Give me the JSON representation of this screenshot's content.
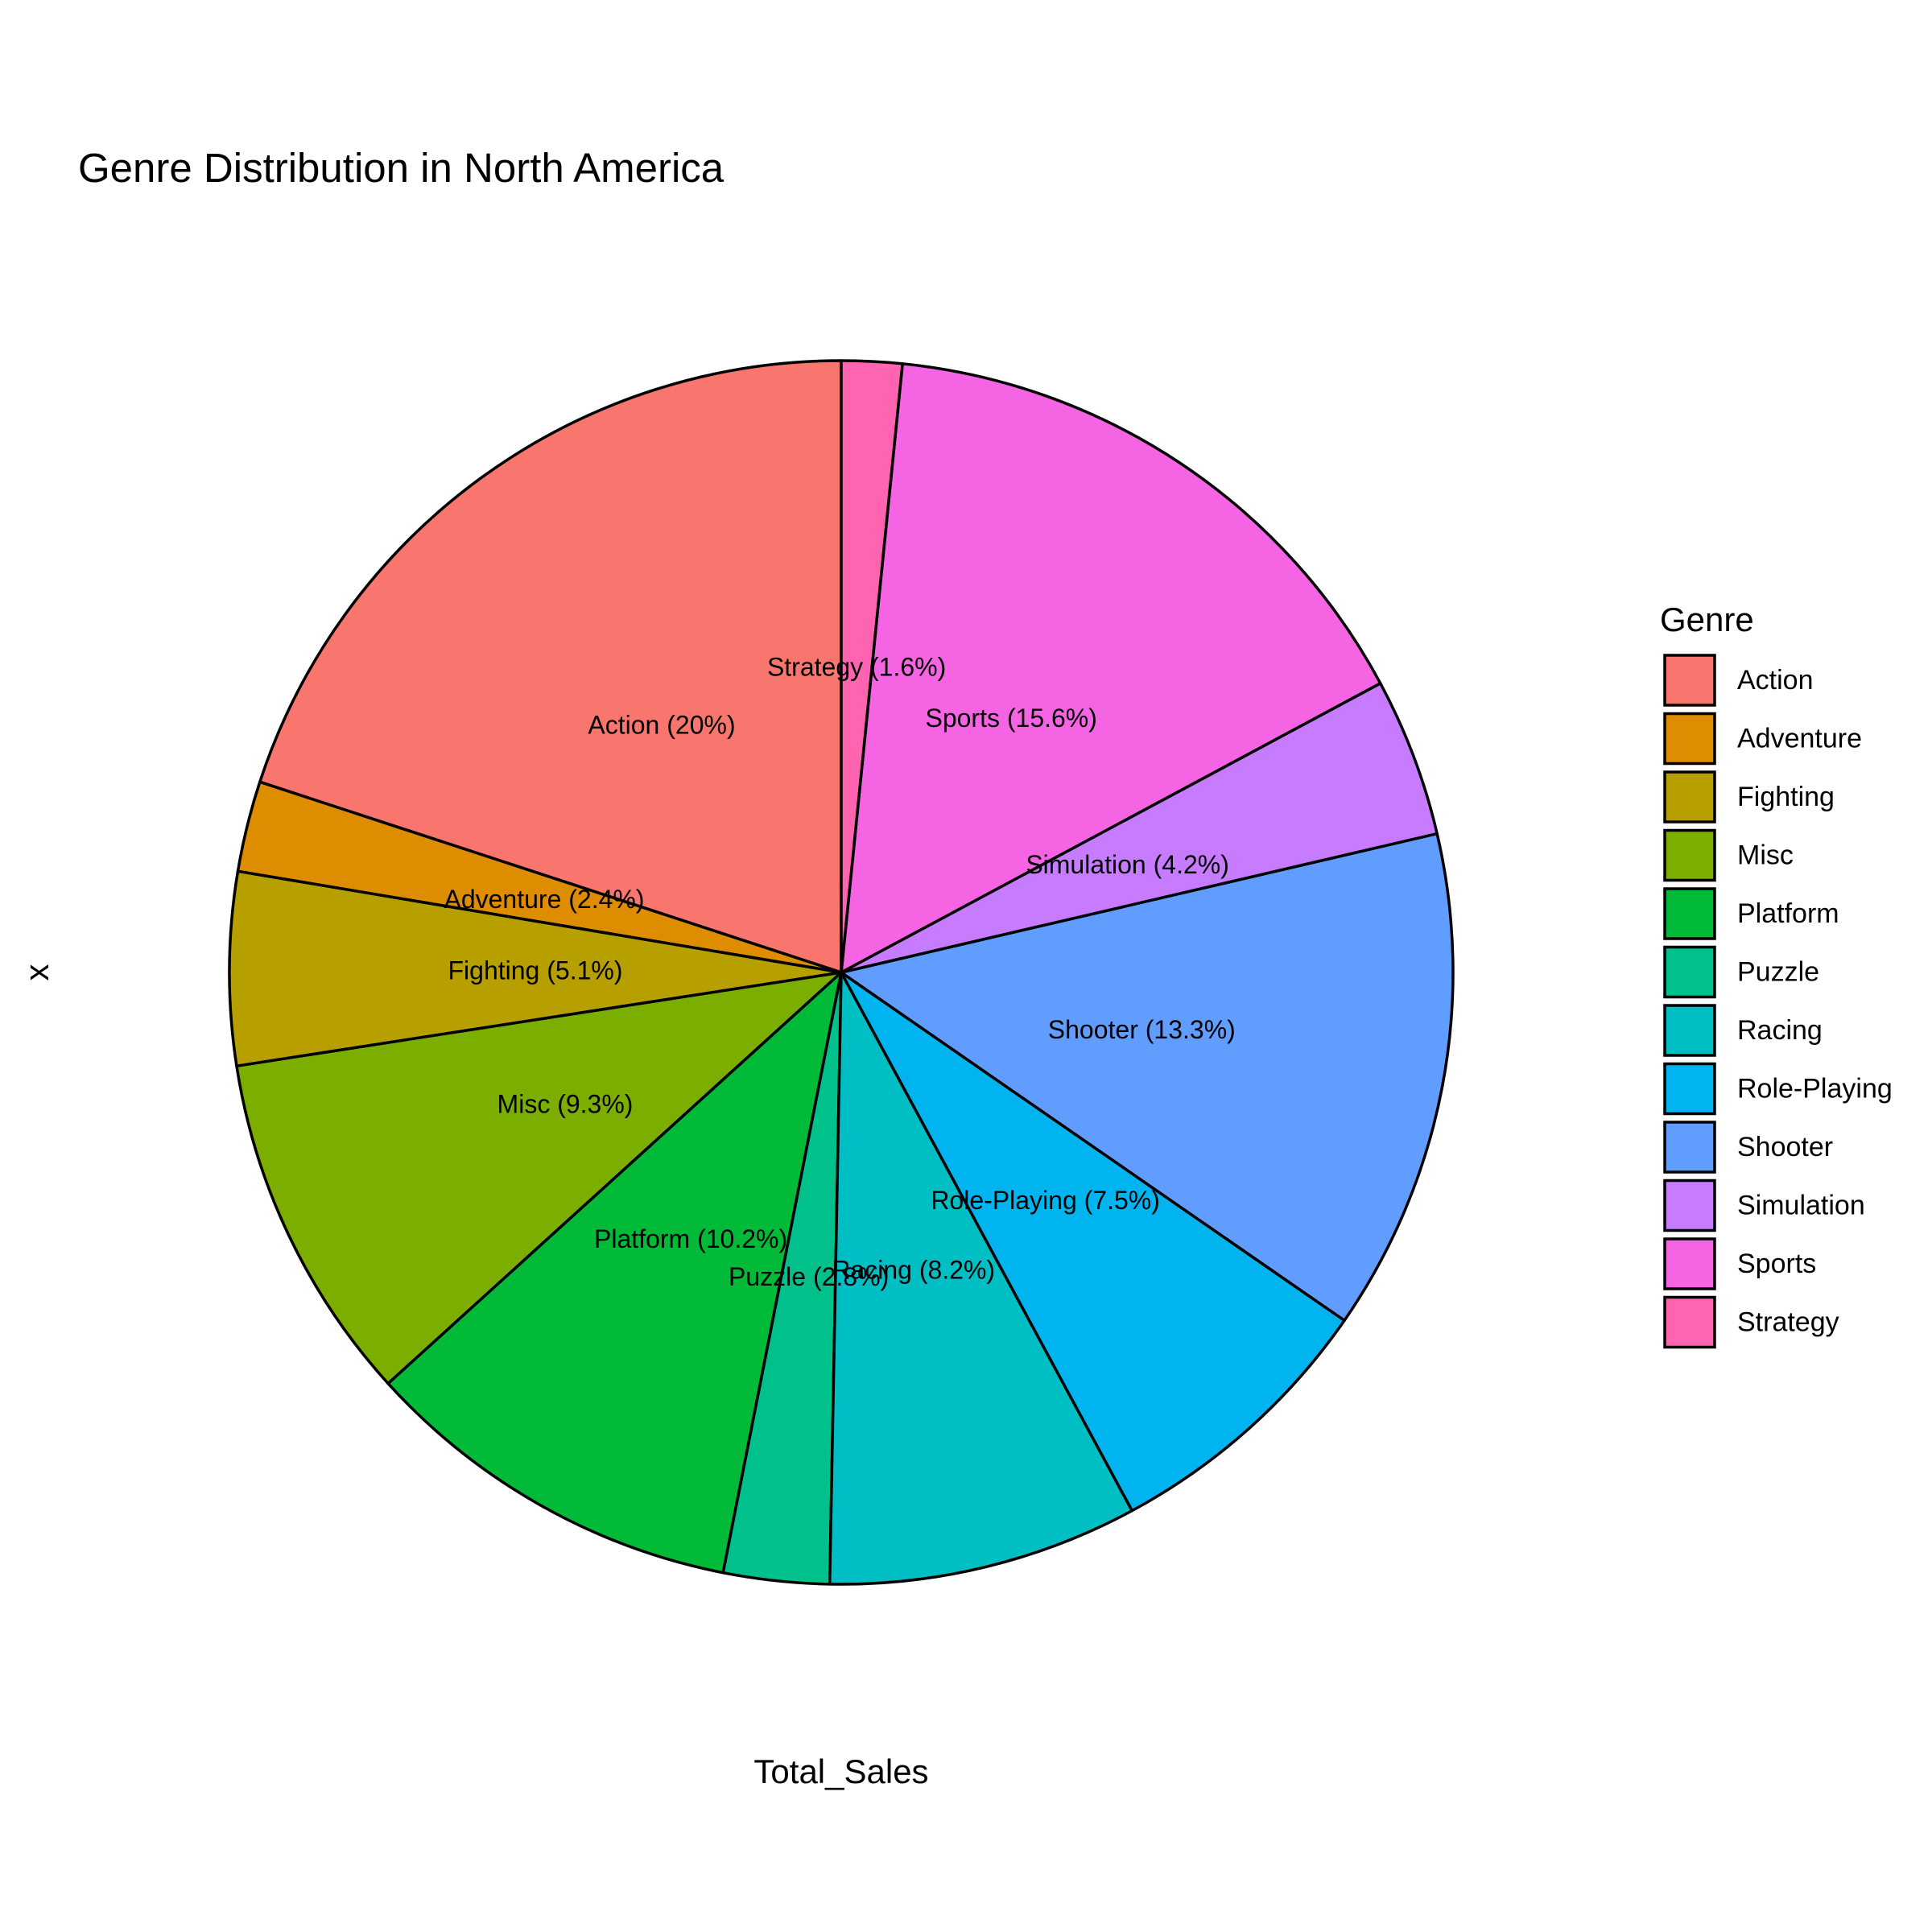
{
  "chart_data": {
    "type": "pie",
    "title": "Genre Distribution in North America",
    "xlabel": "Total_Sales",
    "ylabel": "x",
    "legend_title": "Genre",
    "legend_position": "right",
    "slice_order_from_top_counterclockwise": [
      "Action",
      "Adventure",
      "Fighting",
      "Misc",
      "Platform",
      "Puzzle",
      "Racing",
      "Role-Playing",
      "Shooter",
      "Simulation",
      "Sports",
      "Strategy"
    ],
    "slices": [
      {
        "name": "Action",
        "percent": 20.0,
        "label": "Action (20%)",
        "color": "#F8766D"
      },
      {
        "name": "Adventure",
        "percent": 2.4,
        "label": "Adventure (2.4%)",
        "color": "#DE8C00"
      },
      {
        "name": "Fighting",
        "percent": 5.1,
        "label": "Fighting (5.1%)",
        "color": "#B79F00"
      },
      {
        "name": "Misc",
        "percent": 9.3,
        "label": "Misc (9.3%)",
        "color": "#7CAE00"
      },
      {
        "name": "Platform",
        "percent": 10.2,
        "label": "Platform (10.2%)",
        "color": "#00BA38"
      },
      {
        "name": "Puzzle",
        "percent": 2.8,
        "label": "Puzzle (2.8%)",
        "color": "#00C08B"
      },
      {
        "name": "Racing",
        "percent": 8.2,
        "label": "Racing (8.2%)",
        "color": "#00BFC4"
      },
      {
        "name": "Role-Playing",
        "percent": 7.5,
        "label": "Role-Playing (7.5%)",
        "color": "#00B4F0"
      },
      {
        "name": "Shooter",
        "percent": 13.3,
        "label": "Shooter (13.3%)",
        "color": "#619CFF"
      },
      {
        "name": "Simulation",
        "percent": 4.2,
        "label": "Simulation (4.2%)",
        "color": "#C77CFF"
      },
      {
        "name": "Sports",
        "percent": 15.6,
        "label": "Sports (15.6%)",
        "color": "#F564E3"
      },
      {
        "name": "Strategy",
        "percent": 1.6,
        "label": "Strategy (1.6%)",
        "color": "#FF64B0"
      }
    ]
  }
}
